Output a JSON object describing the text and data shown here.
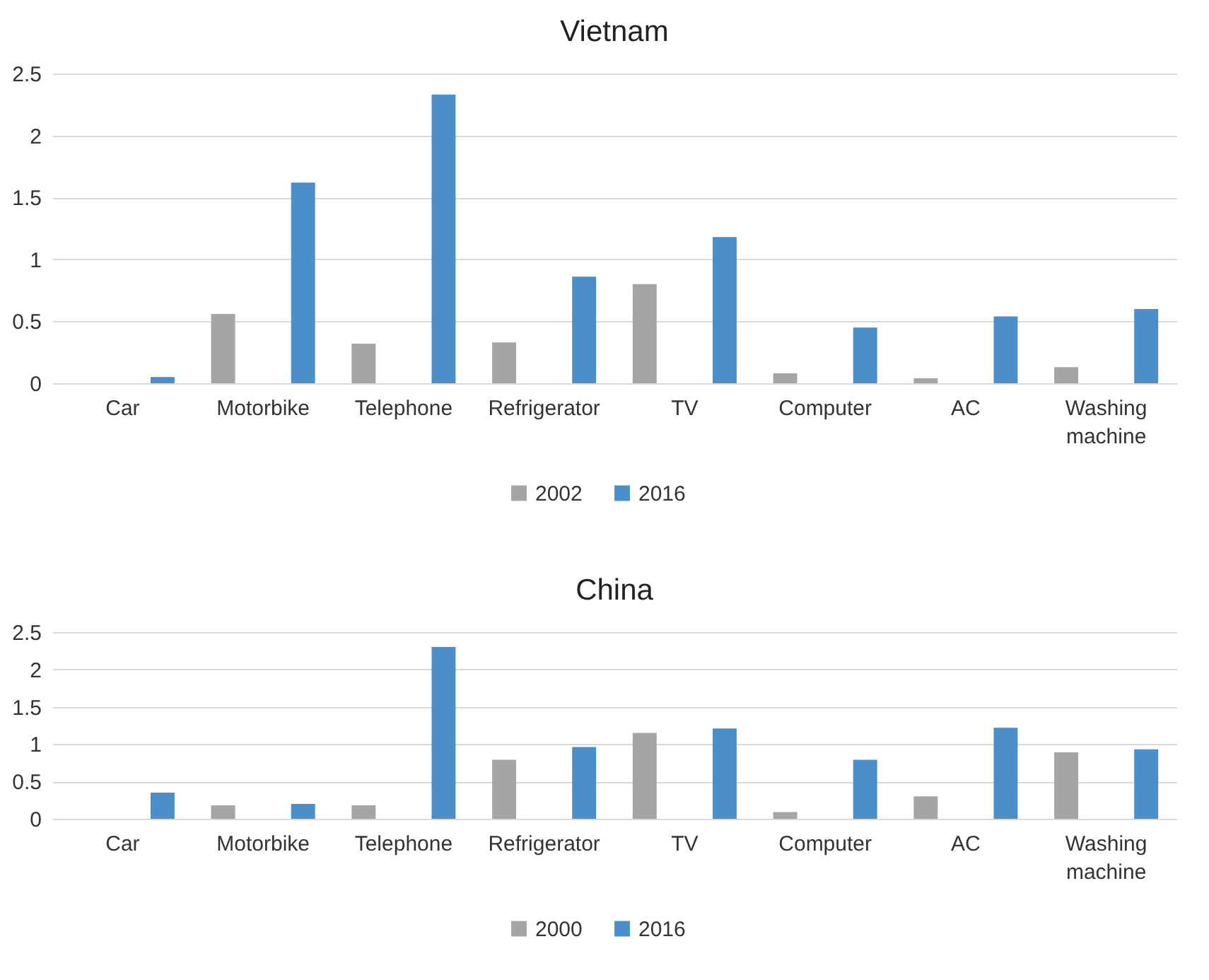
{
  "chart_data": [
    {
      "type": "bar",
      "title": "Vietnam",
      "categories": [
        "Car",
        "Motorbike",
        "Telephone",
        "Refrigerator",
        "TV",
        "Computer",
        "AC",
        "Washing machine"
      ],
      "series": [
        {
          "name": "2002",
          "color": "#a5a5a5",
          "values": [
            0,
            0.56,
            0.32,
            0.33,
            0.8,
            0.08,
            0.04,
            0.13
          ]
        },
        {
          "name": "2016",
          "color": "#4a8fc9",
          "values": [
            0.05,
            1.62,
            2.33,
            0.86,
            1.18,
            0.45,
            0.54,
            0.6
          ]
        }
      ],
      "ylim": [
        0,
        2.5
      ],
      "yticks": [
        0,
        0.5,
        1,
        1.5,
        2,
        2.5
      ],
      "grid": "y",
      "legend": "bottom"
    },
    {
      "type": "bar",
      "title": "China",
      "categories": [
        "Car",
        "Motorbike",
        "Telephone",
        "Refrigerator",
        "TV",
        "Computer",
        "AC",
        "Washing machine"
      ],
      "series": [
        {
          "name": "2000",
          "color": "#a5a5a5",
          "values": [
            0,
            0.18,
            0.18,
            0.79,
            1.15,
            0.09,
            0.3,
            0.89
          ]
        },
        {
          "name": "2016",
          "color": "#4a8fc9",
          "values": [
            0.35,
            0.2,
            2.3,
            0.96,
            1.21,
            0.79,
            1.22,
            0.93
          ]
        }
      ],
      "ylim": [
        0,
        2.5
      ],
      "yticks": [
        0,
        0.5,
        1,
        1.5,
        2,
        2.5
      ],
      "grid": "y",
      "legend": "bottom"
    }
  ]
}
